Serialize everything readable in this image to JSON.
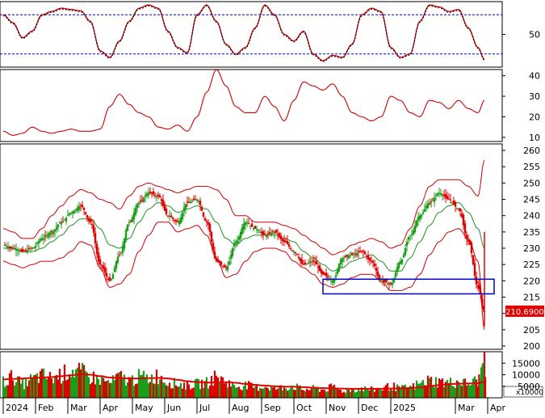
{
  "colors": {
    "up": "#1a9e1a",
    "down": "#e00000",
    "ma": "#1f8f1f",
    "band": "#cc0000",
    "stoch_k": "#cc0000",
    "stoch_d": "#000000",
    "stoch_level": "#0000cc",
    "box": "#0000cc",
    "price_label_bg": "#e00000",
    "vol_ma": "#e00000"
  },
  "chart_data": [
    {
      "type": "line",
      "panel": "stochastic",
      "y_ticks": [
        "50"
      ],
      "ylim": [
        0,
        100
      ],
      "levels": [
        80,
        20
      ],
      "x_month_index": [
        0,
        0.3,
        0.6,
        0.9,
        1.2,
        1.5,
        1.8,
        2.1,
        2.4,
        2.7,
        3.0,
        3.3,
        3.6,
        3.9,
        4.2,
        4.5,
        4.8,
        5.1,
        5.4,
        5.7,
        6.0,
        6.3,
        6.6,
        6.9,
        7.2,
        7.5,
        7.8,
        8.1,
        8.4,
        8.7,
        9.0,
        9.3,
        9.6,
        9.9,
        10.2,
        10.5,
        10.8,
        11.1,
        11.4,
        11.7,
        12.0,
        12.3,
        12.6,
        12.9,
        13.2,
        13.5,
        13.8,
        14.1,
        14.4,
        14.7,
        14.9
      ],
      "series": [
        {
          "values": [
            80,
            68,
            45,
            55,
            80,
            85,
            90,
            88,
            86,
            70,
            25,
            15,
            40,
            70,
            90,
            95,
            90,
            55,
            30,
            22,
            80,
            95,
            70,
            35,
            20,
            30,
            60,
            95,
            80,
            50,
            40,
            55,
            20,
            10,
            18,
            15,
            35,
            80,
            90,
            85,
            30,
            15,
            20,
            70,
            95,
            92,
            85,
            88,
            60,
            30,
            12
          ]
        }
      ]
    },
    {
      "type": "line",
      "panel": "indicator",
      "y_ticks": [
        "40",
        "30",
        "20",
        "10"
      ],
      "ylim": [
        8,
        43
      ],
      "x_month_index": [
        0,
        0.3,
        0.6,
        0.9,
        1.2,
        1.5,
        1.8,
        2.1,
        2.4,
        2.7,
        3.0,
        3.3,
        3.6,
        3.9,
        4.2,
        4.5,
        4.8,
        5.1,
        5.4,
        5.7,
        6.0,
        6.3,
        6.6,
        6.9,
        7.2,
        7.5,
        7.8,
        8.1,
        8.4,
        8.7,
        9.0,
        9.3,
        9.6,
        9.9,
        10.2,
        10.5,
        10.8,
        11.1,
        11.4,
        11.7,
        12.0,
        12.3,
        12.6,
        12.9,
        13.2,
        13.5,
        13.8,
        14.1,
        14.4,
        14.7,
        14.9
      ],
      "series": [
        {
          "values": [
            13,
            11,
            12,
            15,
            13,
            12,
            13,
            14,
            13,
            13,
            14,
            25,
            31,
            26,
            22,
            20,
            15,
            14,
            16,
            13,
            20,
            32,
            43,
            35,
            25,
            22,
            22,
            30,
            25,
            18,
            28,
            37,
            35,
            33,
            36,
            30,
            22,
            20,
            18,
            20,
            30,
            28,
            22,
            20,
            28,
            27,
            24,
            28,
            24,
            22,
            28
          ]
        }
      ]
    },
    {
      "type": "candlestick",
      "panel": "price",
      "y_ticks": [
        "260",
        "255",
        "250",
        "245",
        "240",
        "235",
        "230",
        "225",
        "220",
        "215",
        "210",
        "205",
        "200"
      ],
      "ylim": [
        199,
        262
      ],
      "last_price_label": "210.6900",
      "x_ticks": [
        "2024",
        "Feb",
        "Mar",
        "Apr",
        "May",
        "Jun",
        "Jul",
        "Aug",
        "Sep",
        "Oct",
        "Nov",
        "Dec",
        "2025",
        "Mar",
        "Apr"
      ],
      "x_tick_month_index": [
        0,
        1,
        2,
        3,
        4,
        5,
        6,
        7,
        8,
        9,
        10,
        11,
        12,
        14,
        15
      ],
      "x_month_index": [
        0,
        0.3,
        0.6,
        0.9,
        1.2,
        1.5,
        1.8,
        2.1,
        2.4,
        2.7,
        3.0,
        3.3,
        3.6,
        3.9,
        4.2,
        4.5,
        4.8,
        5.1,
        5.4,
        5.7,
        6.0,
        6.3,
        6.6,
        6.9,
        7.2,
        7.5,
        7.8,
        8.1,
        8.4,
        8.7,
        9.0,
        9.3,
        9.6,
        9.9,
        10.2,
        10.5,
        10.8,
        11.1,
        11.4,
        11.7,
        12.0,
        12.3,
        12.6,
        12.9,
        13.2,
        13.5,
        13.8,
        14.1,
        14.4,
        14.7,
        14.9
      ],
      "close": [
        231,
        230,
        229,
        230,
        233,
        235,
        238,
        241,
        243,
        238,
        225,
        220,
        228,
        238,
        244,
        247,
        246,
        240,
        238,
        244,
        245,
        238,
        226,
        224,
        232,
        238,
        236,
        234,
        235,
        232,
        229,
        225,
        226,
        222,
        220,
        227,
        228,
        229,
        226,
        220,
        219,
        226,
        234,
        240,
        244,
        247,
        245,
        242,
        232,
        218,
        210.69
      ],
      "ma": [
        230,
        230,
        229,
        229,
        230,
        232,
        234,
        237,
        239,
        239,
        236,
        231,
        230,
        233,
        238,
        242,
        244,
        243,
        241,
        242,
        243,
        242,
        238,
        233,
        231,
        233,
        234,
        234,
        234,
        233,
        232,
        229,
        227,
        225,
        223,
        224,
        226,
        227,
        228,
        226,
        223,
        223,
        227,
        232,
        237,
        241,
        243,
        244,
        241,
        236,
        230
      ],
      "upper": [
        236,
        235,
        233,
        233,
        236,
        240,
        243,
        246,
        248,
        247,
        245,
        244,
        242,
        246,
        249,
        250,
        249,
        248,
        247,
        248,
        249,
        249,
        248,
        245,
        240,
        240,
        238,
        238,
        238,
        237,
        236,
        234,
        232,
        230,
        228,
        229,
        231,
        232,
        233,
        232,
        230,
        231,
        236,
        243,
        249,
        251,
        251,
        251,
        249,
        246,
        257
      ],
      "lower": [
        226,
        225,
        224,
        225,
        226,
        226,
        227,
        229,
        232,
        231,
        224,
        218,
        219,
        222,
        229,
        234,
        238,
        238,
        235,
        236,
        237,
        234,
        227,
        221,
        222,
        226,
        229,
        230,
        230,
        229,
        226,
        224,
        222,
        219,
        218,
        219,
        221,
        222,
        222,
        220,
        217,
        217,
        218,
        222,
        228,
        232,
        235,
        236,
        233,
        226,
        205
      ],
      "box": {
        "x_start": 9.9,
        "x_end": 15.2,
        "y_low": 216,
        "y_high": 220.5
      }
    },
    {
      "type": "bar",
      "panel": "volume",
      "y_ticks": [
        "15000",
        "10000",
        "5000"
      ],
      "unit_label": "x10000",
      "ylim": [
        0,
        20000
      ],
      "x_month_index": [
        0,
        0.3,
        0.6,
        0.9,
        1.2,
        1.5,
        1.8,
        2.1,
        2.4,
        2.7,
        3.0,
        3.3,
        3.6,
        3.9,
        4.2,
        4.5,
        4.8,
        5.1,
        5.4,
        5.7,
        6.0,
        6.3,
        6.6,
        6.9,
        7.2,
        7.5,
        7.8,
        8.1,
        8.4,
        8.7,
        9.0,
        9.3,
        9.6,
        9.9,
        10.2,
        10.5,
        10.8,
        11.1,
        11.4,
        11.7,
        12.0,
        12.3,
        12.6,
        12.9,
        13.2,
        13.5,
        13.8,
        14.1,
        14.4,
        14.7,
        14.9
      ],
      "values": [
        7000,
        9000,
        6000,
        8000,
        9500,
        8500,
        10000,
        12000,
        11000,
        9000,
        8000,
        6500,
        9000,
        7500,
        9000,
        8500,
        9500,
        7000,
        6000,
        5500,
        6000,
        6500,
        9000,
        7000,
        5000,
        5500,
        4500,
        5000,
        4000,
        4500,
        5000,
        3500,
        4000,
        3500,
        4500,
        3000,
        3500,
        4000,
        3500,
        4000,
        5000,
        4000,
        4500,
        6000,
        7500,
        7000,
        6500,
        7000,
        6000,
        7500,
        15000
      ],
      "ma": [
        8000,
        8200,
        8400,
        8600,
        8800,
        9000,
        9400,
        9800,
        10200,
        10000,
        9400,
        8800,
        8600,
        8400,
        8400,
        8500,
        8600,
        8400,
        7800,
        7200,
        6800,
        6600,
        6700,
        6800,
        6500,
        6000,
        5600,
        5300,
        5000,
        4800,
        4800,
        4600,
        4400,
        4200,
        4100,
        4000,
        3900,
        3900,
        3900,
        3900,
        4000,
        4100,
        4200,
        4500,
        5000,
        5500,
        5900,
        6100,
        6200,
        6300,
        7000
      ],
      "last_bars": [
        {
          "value": 15000,
          "color": "#1a9e1a"
        },
        {
          "value": 9000,
          "color": "#e00000"
        }
      ]
    }
  ]
}
